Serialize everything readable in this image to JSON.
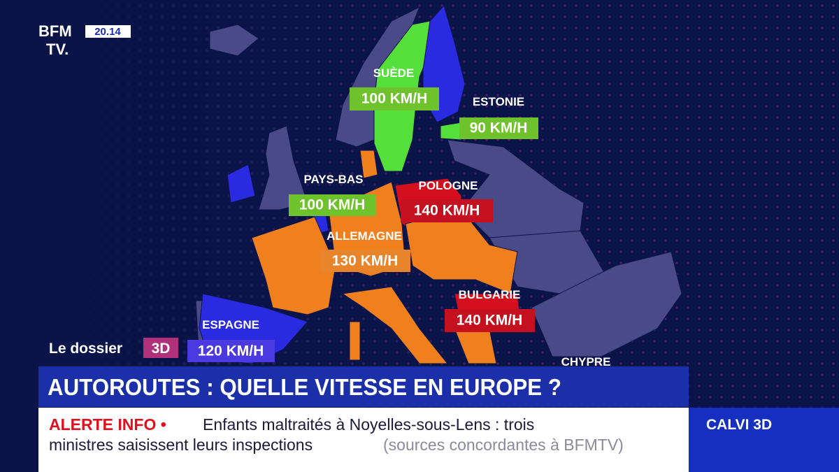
{
  "header": {
    "logo_top": "BFM",
    "logo_bottom": "TV.",
    "time": "20.14"
  },
  "map_labels": [
    {
      "country": "SUÈDE",
      "speed": "100 KM/H"
    },
    {
      "country": "ESTONIE",
      "speed": "90 KM/H"
    },
    {
      "country": "PAYS-BAS",
      "speed": "100 KM/H"
    },
    {
      "country": "POLOGNE",
      "speed": "140 KM/H"
    },
    {
      "country": "ALLEMAGNE",
      "speed": "130 KM/H"
    },
    {
      "country": "BULGARIE",
      "speed": "140 KM/H"
    },
    {
      "country": "ESPAGNE",
      "speed": "120 KM/H"
    },
    {
      "country": "CHYPRE"
    }
  ],
  "segment": {
    "label": "Le dossier",
    "badge": "3D"
  },
  "headline": "AUTOROUTES : QUELLE VITESSE EN EUROPE ?",
  "ticker": {
    "alert": "ALERTE INFO •",
    "line1": "Enfants maltraités à Noyelles-sous-Lens : trois",
    "line2": "ministres saisissent leurs inspections",
    "source": "(sources concordantes à BFMTV)"
  },
  "show": "CALVI 3D"
}
